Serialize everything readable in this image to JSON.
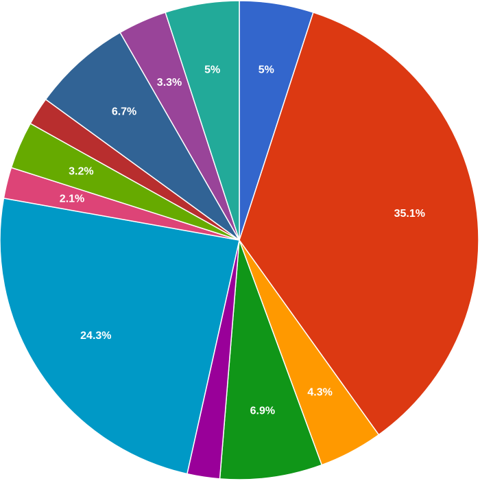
{
  "chart_data": {
    "type": "pie",
    "slices": [
      {
        "label": "5%",
        "value": 5.0,
        "color": "#3366cc"
      },
      {
        "label": "35.1%",
        "value": 35.1,
        "color": "#dc3912"
      },
      {
        "label": "4.3%",
        "value": 4.3,
        "color": "#ff9900"
      },
      {
        "label": "6.9%",
        "value": 6.9,
        "color": "#109618"
      },
      {
        "label": "",
        "value": 2.2,
        "color": "#990099"
      },
      {
        "label": "24.3%",
        "value": 24.3,
        "color": "#0099c6"
      },
      {
        "label": "2.1%",
        "value": 2.1,
        "color": "#dd4477"
      },
      {
        "label": "3.2%",
        "value": 3.2,
        "color": "#66aa00"
      },
      {
        "label": "",
        "value": 1.9,
        "color": "#b82e2e"
      },
      {
        "label": "6.7%",
        "value": 6.7,
        "color": "#316395"
      },
      {
        "label": "3.3%",
        "value": 3.3,
        "color": "#994499"
      },
      {
        "label": "5%",
        "value": 5.0,
        "color": "#22aa99"
      }
    ]
  }
}
